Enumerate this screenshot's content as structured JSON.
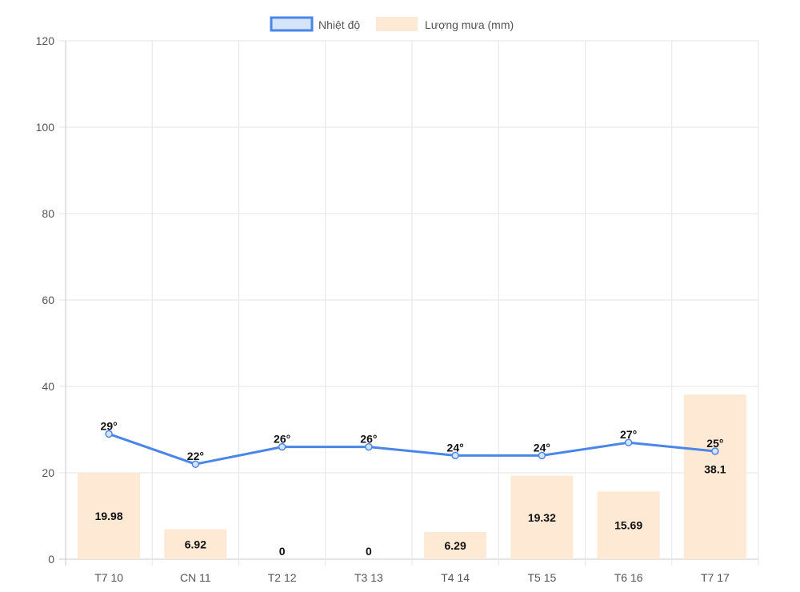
{
  "chart_data": {
    "type": "bar",
    "categories": [
      "T7 10",
      "CN 11",
      "T2 12",
      "T3 13",
      "T4 14",
      "T5 15",
      "T6 16",
      "T7 17"
    ],
    "series": [
      {
        "name": "Nhiệt độ",
        "type": "line",
        "values": [
          29,
          22,
          26,
          26,
          24,
          24,
          27,
          25
        ],
        "labels": [
          "29°",
          "22°",
          "26°",
          "26°",
          "24°",
          "24°",
          "27°",
          "25°"
        ],
        "color": "#4a86e8"
      },
      {
        "name": "Lượng mưa (mm)",
        "type": "bar",
        "values": [
          19.98,
          6.92,
          0,
          0,
          6.29,
          19.32,
          15.69,
          38.1
        ],
        "labels": [
          "19.98",
          "6.92",
          "0",
          "0",
          "6.29",
          "19.32",
          "15.69",
          "38.1"
        ],
        "color": "#fde9d4"
      }
    ],
    "yticks": [
      "0",
      "20",
      "40",
      "60",
      "80",
      "100",
      "120"
    ],
    "ylim": [
      0,
      120
    ],
    "grid": true,
    "legend": "top-center"
  }
}
